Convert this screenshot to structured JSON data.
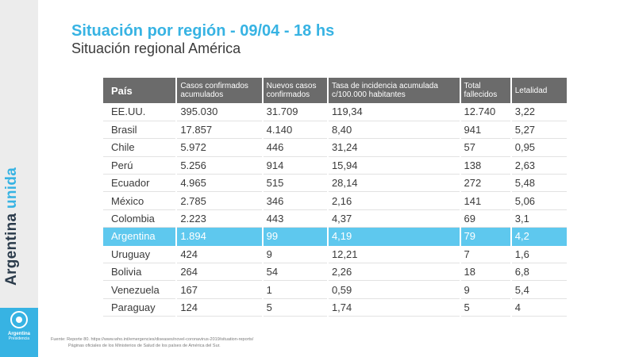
{
  "header": {
    "title": "Situación por región - 09/04 - 18 hs",
    "subtitle": "Situación regional América"
  },
  "brand": {
    "text_main": "Argentina ",
    "text_accent": "unida",
    "logo_line1": "Argentina",
    "logo_line2": "Presidencia",
    "accent_color": "#37b3e3"
  },
  "table": {
    "headers": [
      "País",
      "Casos confirmados acumulados",
      "Nuevos casos confirmados",
      "Tasa de incidencia acumulada c/100.000 habitantes",
      "Total fallecidos",
      "Letalidad"
    ],
    "rows": [
      [
        "EE.UU.",
        "395.030",
        "31.709",
        "119,34",
        "12.740",
        "3,22"
      ],
      [
        "Brasil",
        "17.857",
        "4.140",
        "8,40",
        "941",
        "5,27"
      ],
      [
        "Chile",
        "5.972",
        "446",
        "31,24",
        "57",
        "0,95"
      ],
      [
        "Perú",
        "5.256",
        "914",
        "15,94",
        "138",
        "2,63"
      ],
      [
        "Ecuador",
        "4.965",
        "515",
        "28,14",
        "272",
        "5,48"
      ],
      [
        "México",
        "2.785",
        "346",
        "2,16",
        "141",
        "5,06"
      ],
      [
        "Colombia",
        "2.223",
        "443",
        "4,37",
        "69",
        "3,1"
      ],
      [
        "Argentina",
        "1.894",
        "99",
        "4,19",
        "79",
        "4,2"
      ],
      [
        "Uruguay",
        "424",
        "9",
        "12,21",
        "7",
        "1,6"
      ],
      [
        "Bolivia",
        "264",
        "54",
        "2,26",
        "18",
        "6,8"
      ],
      [
        "Venezuela",
        "167",
        "1",
        "0,59",
        "9",
        "5,4"
      ],
      [
        "Paraguay",
        "124",
        "5",
        "1,74",
        "5",
        "4"
      ]
    ],
    "highlighted_country": "Argentina",
    "highlight_color": "#5ec8ee"
  },
  "footer": {
    "line1": "Fuente: Reporte 80. https://www.who.int/emergencies/diseases/novel-coronavirus-2019/situation-reports/",
    "line2": "Páginas oficiales de los Ministerios de Salud de los países de América del Sur."
  }
}
